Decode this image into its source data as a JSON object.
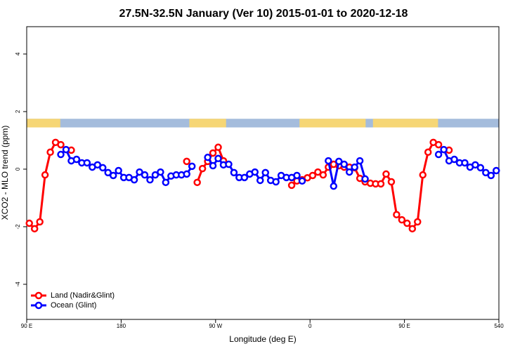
{
  "chart_data": {
    "type": "line",
    "title": "27.5N-32.5N January (Ver 10)   2015-01-01 to 2020-12-18",
    "x_label": "Longitude (deg E)",
    "y_label": "XCO2 - MLO trend (ppm)",
    "xlim": [
      90,
      540
    ],
    "ylim": [
      -5.22,
      4.95
    ],
    "xticks": [
      {
        "value": 90,
        "label": "90 E"
      },
      180,
      {
        "value": 270,
        "label": "90 W"
      },
      {
        "value": 360,
        "label": "0"
      },
      {
        "value": 450,
        "label": "90 E"
      },
      540
    ],
    "yticks": [
      -4,
      -2,
      0,
      2,
      4
    ],
    "legend": "bottom-left",
    "land_mask": {
      "ylim": [
        1.45,
        1.75
      ],
      "ocean_color": "#a4bcdc",
      "land_color": "#f6d675",
      "ranges": [
        [
          90,
          122
        ],
        [
          245,
          280
        ],
        [
          350,
          413
        ],
        [
          420,
          482
        ]
      ]
    },
    "x": [
      92.5,
      97.5,
      102.5,
      107.5,
      112.5,
      117.5,
      122.5,
      127.5,
      132.5,
      137.5,
      142.5,
      147.5,
      152.5,
      157.5,
      162.5,
      167.5,
      172.5,
      177.5,
      182.5,
      187.5,
      192.5,
      197.5,
      202.5,
      207.5,
      212.5,
      217.5,
      222.5,
      227.5,
      232.5,
      237.5,
      242.5,
      247.5,
      252.5,
      257.5,
      262.5,
      267.5,
      272.5,
      277.5,
      282.5,
      287.5,
      292.5,
      297.5,
      302.5,
      307.5,
      312.5,
      317.5,
      322.5,
      327.5,
      332.5,
      337.5,
      342.5,
      347.5,
      352.5,
      357.5,
      362.5,
      367.5,
      372.5,
      377.5,
      382.5,
      387.5,
      392.5,
      397.5,
      402.5,
      407.5,
      412.5,
      417.5,
      422.5,
      427.5,
      432.5,
      437.5,
      442.5,
      447.5,
      452.5,
      457.5,
      462.5,
      467.5,
      472.5,
      477.5,
      482.5,
      487.5,
      492.5,
      497.5,
      502.5,
      507.5,
      512.5,
      517.5,
      522.5,
      527.5,
      532.5,
      537.5
    ],
    "series": [
      {
        "name": "Land (Nadir&Glint)",
        "color": "#ff0000",
        "values": [
          -1.88,
          -2.07,
          -1.83,
          -0.2,
          0.59,
          0.93,
          0.85,
          null,
          0.66,
          null,
          null,
          null,
          null,
          null,
          null,
          null,
          null,
          null,
          null,
          null,
          null,
          null,
          null,
          null,
          null,
          null,
          null,
          null,
          null,
          null,
          0.27,
          null,
          -0.46,
          0.02,
          0.27,
          0.56,
          0.76,
          0.29,
          null,
          null,
          null,
          null,
          null,
          null,
          null,
          null,
          null,
          null,
          null,
          null,
          -0.56,
          -0.41,
          -0.37,
          -0.3,
          -0.22,
          -0.1,
          -0.2,
          0.07,
          0.17,
          0.12,
          0.07,
          0.07,
          0.05,
          -0.32,
          -0.44,
          -0.49,
          -0.51,
          -0.51,
          -0.17,
          -0.44,
          -1.58,
          -1.76,
          -1.88,
          -2.07,
          -1.83,
          -0.2,
          0.59,
          0.93,
          0.85,
          null,
          0.66,
          null,
          null,
          null,
          null,
          null,
          null,
          null,
          null,
          null
        ]
      },
      {
        "name": "Ocean (Glint)",
        "color": "#0000ff",
        "values": [
          null,
          null,
          null,
          null,
          null,
          null,
          0.51,
          0.68,
          0.29,
          0.34,
          0.22,
          0.22,
          0.07,
          0.15,
          0.05,
          -0.12,
          -0.22,
          -0.05,
          -0.29,
          -0.29,
          -0.37,
          -0.1,
          -0.2,
          -0.37,
          -0.2,
          -0.1,
          -0.46,
          -0.24,
          -0.2,
          -0.2,
          -0.17,
          0.1,
          null,
          null,
          0.41,
          0.12,
          0.37,
          0.15,
          0.17,
          -0.12,
          -0.29,
          -0.29,
          -0.17,
          -0.1,
          -0.39,
          -0.12,
          -0.39,
          -0.44,
          -0.22,
          -0.29,
          -0.29,
          -0.22,
          -0.41,
          null,
          null,
          null,
          null,
          0.29,
          -0.59,
          0.27,
          0.17,
          -0.1,
          0.07,
          0.29,
          -0.34,
          null,
          null,
          null,
          null,
          null,
          null,
          null,
          null,
          null,
          null,
          null,
          null,
          null,
          0.51,
          0.68,
          0.29,
          0.34,
          0.22,
          0.22,
          0.07,
          0.15,
          0.05,
          -0.12,
          -0.22,
          -0.05
        ]
      }
    ]
  }
}
